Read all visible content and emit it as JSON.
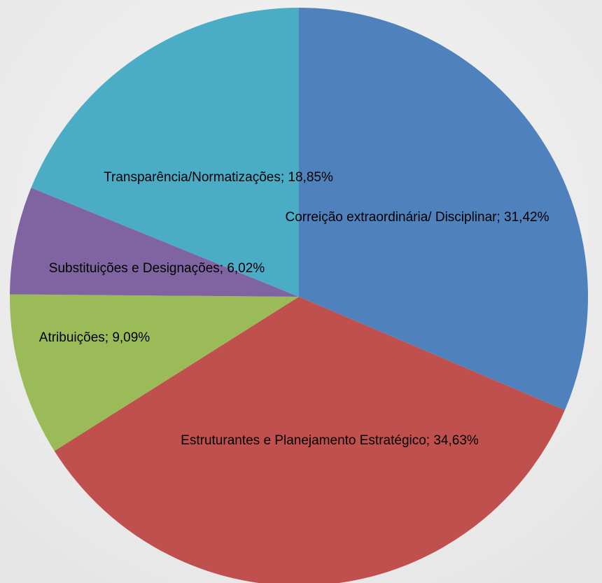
{
  "chart_data": {
    "type": "pie",
    "values": [
      31.42,
      34.63,
      9.09,
      6.02,
      18.85
    ],
    "value_labels": [
      "Correição extraordinária/ Disciplinar; 31,42%",
      "Estruturantes e Planejamento Estratégico; 34,63%",
      "Atribuições; 9,09%",
      "Substituições e Designações; 6,02%",
      "Transparência/Normatizações; 18,85%"
    ],
    "colors": [
      "#4f81bd",
      "#c0504d",
      "#9bbb59",
      "#8064a2",
      "#4bacc6"
    ]
  }
}
